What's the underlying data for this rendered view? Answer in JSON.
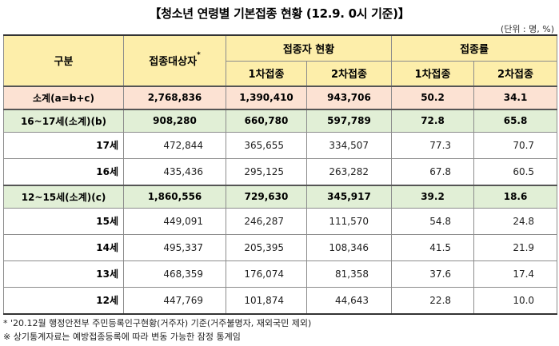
{
  "title": "【청소년 연령별 기본접종 현황 (12.9. 0시 기준)】",
  "unit": "(단위 : 명, %)",
  "header": {
    "group": "구분",
    "target": "접종대상자",
    "target_mark": "*",
    "vaccinated": "접종자 현황",
    "rate": "접종률",
    "dose1": "1차접종",
    "dose2": "2차접종",
    "rate1": "1차접종",
    "rate2": "2차접종"
  },
  "rows": [
    {
      "label": "소계(a=b+c)",
      "target": "2,768,836",
      "dose1": "1,390,410",
      "dose2": "943,706",
      "rate1": "50.2",
      "rate2": "34.1"
    },
    {
      "label": "16~17세(소계)(b)",
      "target": "908,280",
      "dose1": "660,780",
      "dose2": "597,789",
      "rate1": "72.8",
      "rate2": "65.8"
    },
    {
      "label": "17세",
      "target": "472,844",
      "dose1": "365,655",
      "dose2": "334,507",
      "rate1": "77.3",
      "rate2": "70.7"
    },
    {
      "label": "16세",
      "target": "435,436",
      "dose1": "295,125",
      "dose2": "263,282",
      "rate1": "67.8",
      "rate2": "60.5"
    },
    {
      "label": "12~15세(소계)(c)",
      "target": "1,860,556",
      "dose1": "729,630",
      "dose2": "345,917",
      "rate1": "39.2",
      "rate2": "18.6"
    },
    {
      "label": "15세",
      "target": "449,091",
      "dose1": "246,287",
      "dose2": "111,570",
      "rate1": "54.8",
      "rate2": "24.8"
    },
    {
      "label": "14세",
      "target": "495,337",
      "dose1": "205,395",
      "dose2": "108,346",
      "rate1": "41.5",
      "rate2": "21.9"
    },
    {
      "label": "13세",
      "target": "468,359",
      "dose1": "176,074",
      "dose2": "81,358",
      "rate1": "37.6",
      "rate2": "17.4"
    },
    {
      "label": "12세",
      "target": "447,769",
      "dose1": "101,874",
      "dose2": "44,643",
      "rate1": "22.8",
      "rate2": "10.0"
    }
  ],
  "notes": [
    "* '20.12월 행정안전부 주민등록인구현황(거주자) 기준(거주불명자, 재외국민 제외)",
    "※ 상기통계자료는 예방접종등록에 따라 변동 가능한 잠정 통계임"
  ],
  "colors": {
    "header_bg": "#fdeeaa",
    "total_row_bg": "#fce2d3",
    "subtotal_row_bg": "#e1efd6"
  }
}
